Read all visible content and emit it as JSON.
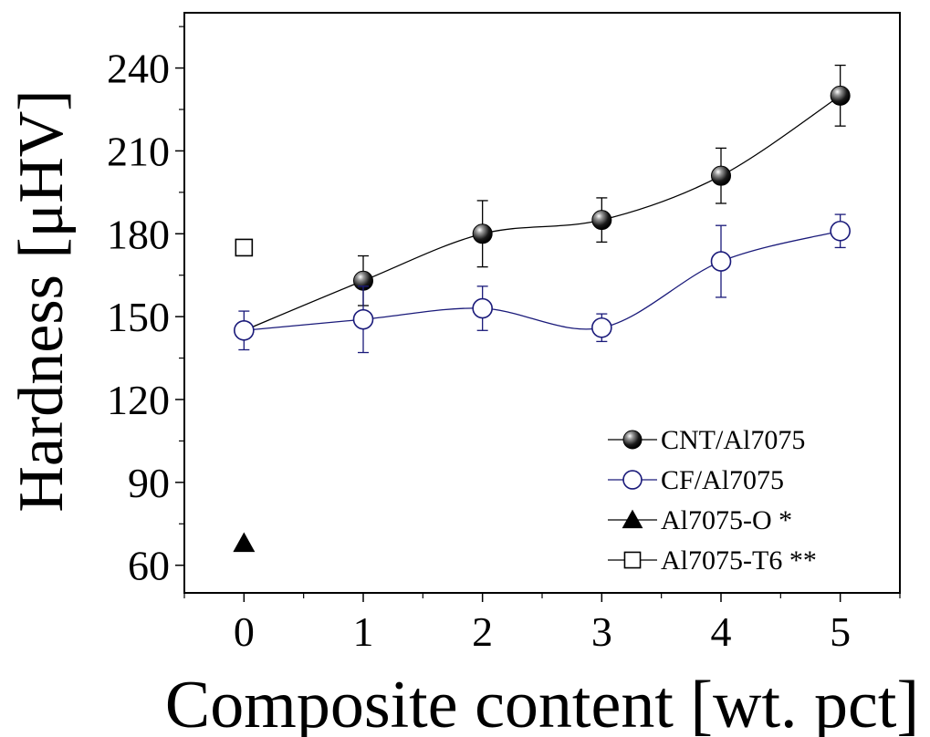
{
  "chart_data": {
    "type": "line",
    "xlabel": "Composite content [wt. pct]",
    "ylabel": "Hardness [μHV]",
    "xlim": [
      -0.5,
      5.5
    ],
    "ylim": [
      50,
      260
    ],
    "xticks": [
      "0",
      "1",
      "2",
      "3",
      "4",
      "5"
    ],
    "yticks": [
      "60",
      "90",
      "120",
      "150",
      "180",
      "210",
      "240"
    ],
    "grid": false,
    "legend_position": "bottom-right",
    "series": [
      {
        "name": "CNT/Al7075",
        "marker": "filled-sphere",
        "color": "#000000",
        "x": [
          0,
          1,
          2,
          3,
          4,
          5
        ],
        "y": [
          145,
          163,
          180,
          185,
          201,
          230
        ],
        "err": [
          null,
          9,
          12,
          8,
          10,
          11
        ]
      },
      {
        "name": "CF/Al7075",
        "marker": "open-circle",
        "color": "#1a1a7a",
        "x": [
          0,
          1,
          2,
          3,
          4,
          5
        ],
        "y": [
          145,
          149,
          153,
          146,
          170,
          181
        ],
        "err": [
          7,
          12,
          8,
          5,
          13,
          6
        ]
      },
      {
        "name": "Al7075-O *",
        "marker": "filled-triangle",
        "color": "#000000",
        "x": [
          0
        ],
        "y": [
          68
        ]
      },
      {
        "name": "Al7075-T6 **",
        "marker": "open-square",
        "color": "#000000",
        "x": [
          0
        ],
        "y": [
          175
        ]
      }
    ]
  }
}
